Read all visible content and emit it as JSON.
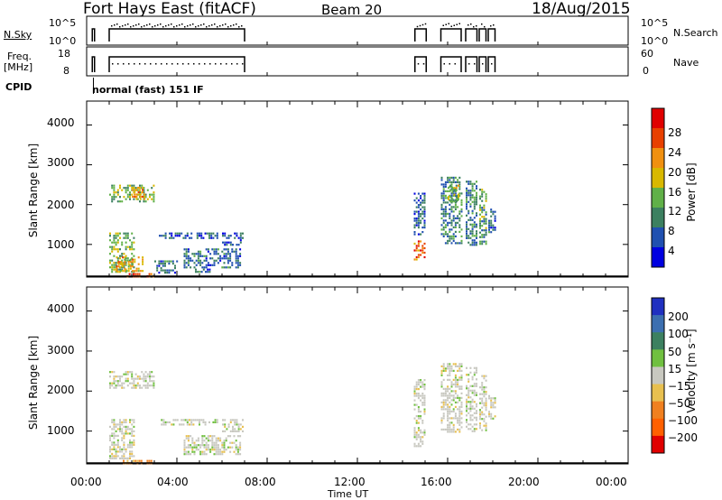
{
  "header": {
    "station": "Fort Hays East (fitACF)",
    "beam": "Beam 20",
    "date": "18/Aug/2015"
  },
  "strips": {
    "nsky_label": "N.Sky",
    "nsky_ticks": [
      "10^5",
      "10^0"
    ],
    "nsearch_label": "N.Search",
    "nsearch_ticks": [
      "10^5",
      "10^0"
    ],
    "freq_label_1": "Freq.",
    "freq_label_2": "[MHz]",
    "freq_ticks": [
      "18",
      "8"
    ],
    "nave_label": "Nave",
    "nave_ticks": [
      "60",
      "0"
    ],
    "cpid_label": "CPID",
    "cpid_text": "normal (fast) 151 IF"
  },
  "axes": {
    "y_label": "Slant Range [km]",
    "y_ticks": [
      "4000",
      "3000",
      "2000",
      "1000"
    ],
    "x_label": "Time UT",
    "x_ticks": [
      "00:00",
      "04:00",
      "08:00",
      "12:00",
      "16:00",
      "20:00",
      "00:00"
    ]
  },
  "power_scale": {
    "label": "Power [dB]",
    "ticks": [
      "28",
      "24",
      "20",
      "16",
      "12",
      "8",
      "4"
    ],
    "colors": [
      "#0000e0",
      "#2050b0",
      "#3c8060",
      "#60b048",
      "#d8b800",
      "#f09010",
      "#e84000",
      "#e00000"
    ]
  },
  "velocity_scale": {
    "label": "Velocity [m s⁻¹]",
    "ticks": [
      "200",
      "100",
      "50",
      "15",
      "−15",
      "−50",
      "−100",
      "−200"
    ],
    "colors": [
      "#2030c0",
      "#3c6fb0",
      "#3c8060",
      "#70c040",
      "#c8c8c0",
      "#e8c050",
      "#f08020",
      "#ff6000",
      "#e00000"
    ]
  },
  "chart_data": [
    {
      "type": "heatmap",
      "name": "power",
      "x_unit": "hours UT",
      "y_unit": "km",
      "xlim": [
        0,
        24
      ],
      "ylim": [
        180,
        4600
      ],
      "clim": [
        0,
        32
      ],
      "patches": [
        {
          "t": [
            1.0,
            2.1
          ],
          "r": [
            300,
            1300
          ],
          "v": 14
        },
        {
          "t": [
            1.3,
            2.5
          ],
          "r": [
            350,
            700
          ],
          "v": 20
        },
        {
          "t": [
            1.0,
            3.0
          ],
          "r": [
            2100,
            2500
          ],
          "v": 14
        },
        {
          "t": [
            2.0,
            2.6
          ],
          "r": [
            2150,
            2450
          ],
          "v": 22
        },
        {
          "t": [
            1.6,
            3.0
          ],
          "r": [
            200,
            280
          ],
          "v": 26
        },
        {
          "t": [
            3.0,
            4.0
          ],
          "r": [
            300,
            600
          ],
          "v": 8
        },
        {
          "t": [
            3.2,
            5.8
          ],
          "r": [
            1150,
            1300
          ],
          "v": 6
        },
        {
          "t": [
            4.3,
            6.8
          ],
          "r": [
            400,
            900
          ],
          "v": 8
        },
        {
          "t": [
            4.8,
            5.5
          ],
          "r": [
            300,
            450
          ],
          "v": 8
        },
        {
          "t": [
            6.0,
            6.9
          ],
          "r": [
            1000,
            1300
          ],
          "v": 6
        },
        {
          "t": [
            14.5,
            15.0
          ],
          "r": [
            600,
            1100
          ],
          "v": 24
        },
        {
          "t": [
            14.5,
            15.0
          ],
          "r": [
            1200,
            2300
          ],
          "v": 7
        },
        {
          "t": [
            15.7,
            16.6
          ],
          "r": [
            1000,
            2700
          ],
          "v": 10
        },
        {
          "t": [
            16.0,
            16.5
          ],
          "r": [
            2100,
            2500
          ],
          "v": 16
        },
        {
          "t": [
            16.8,
            17.3
          ],
          "r": [
            1000,
            2600
          ],
          "v": 9
        },
        {
          "t": [
            17.4,
            17.7
          ],
          "r": [
            1000,
            2400
          ],
          "v": 12
        },
        {
          "t": [
            17.8,
            18.1
          ],
          "r": [
            1300,
            1900
          ],
          "v": 8
        }
      ]
    },
    {
      "type": "heatmap",
      "name": "velocity",
      "x_unit": "hours UT",
      "y_unit": "km",
      "xlim": [
        0,
        24
      ],
      "ylim": [
        180,
        4600
      ],
      "clim": [
        -250,
        250
      ],
      "patches": [
        {
          "t": [
            1.0,
            2.1
          ],
          "r": [
            300,
            1300
          ],
          "v": 0
        },
        {
          "t": [
            1.0,
            3.0
          ],
          "r": [
            2100,
            2500
          ],
          "v": 0
        },
        {
          "t": [
            1.6,
            3.0
          ],
          "r": [
            200,
            280
          ],
          "v": -60
        },
        {
          "t": [
            3.2,
            5.8
          ],
          "r": [
            1150,
            1300
          ],
          "v": 0
        },
        {
          "t": [
            4.3,
            6.8
          ],
          "r": [
            400,
            900
          ],
          "v": 0
        },
        {
          "t": [
            6.0,
            6.9
          ],
          "r": [
            1000,
            1300
          ],
          "v": 0
        },
        {
          "t": [
            14.5,
            15.0
          ],
          "r": [
            600,
            1100
          ],
          "v": 0
        },
        {
          "t": [
            14.5,
            15.0
          ],
          "r": [
            1200,
            2300
          ],
          "v": 0
        },
        {
          "t": [
            15.7,
            16.6
          ],
          "r": [
            1000,
            2700
          ],
          "v": 0
        },
        {
          "t": [
            16.8,
            17.3
          ],
          "r": [
            1000,
            2600
          ],
          "v": 0
        },
        {
          "t": [
            17.4,
            17.7
          ],
          "r": [
            1000,
            2400
          ],
          "v": 0
        },
        {
          "t": [
            17.8,
            18.1
          ],
          "r": [
            1300,
            1900
          ],
          "v": 0
        }
      ]
    }
  ],
  "nsky_segments": [
    [
      0.25,
      0.35
    ],
    [
      1.0,
      7.0
    ],
    [
      14.55,
      15.05
    ],
    [
      15.7,
      16.6
    ],
    [
      16.8,
      17.3
    ],
    [
      17.4,
      17.7
    ],
    [
      17.8,
      18.1
    ]
  ],
  "freq_segments": [
    [
      0.25,
      0.35
    ],
    [
      1.0,
      7.0
    ],
    [
      14.55,
      15.05
    ],
    [
      15.7,
      16.6
    ],
    [
      16.8,
      17.3
    ],
    [
      17.4,
      17.7
    ],
    [
      17.8,
      18.1
    ]
  ]
}
